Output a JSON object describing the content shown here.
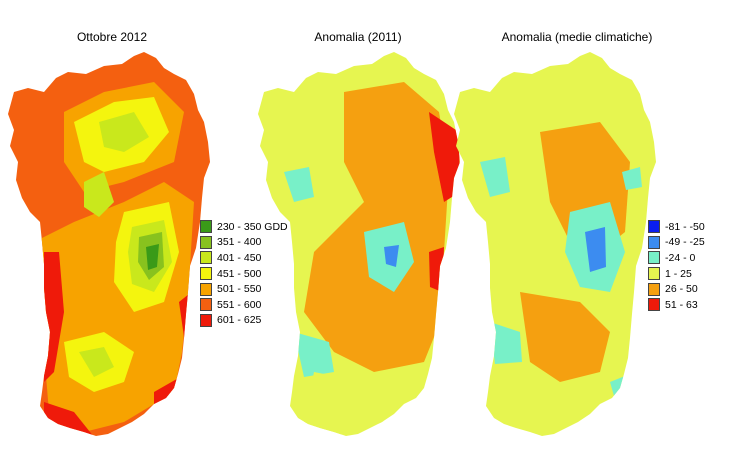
{
  "panels": [
    {
      "title": "Ottobre 2012"
    },
    {
      "title": "Anomalia (2011)"
    },
    {
      "title": "Anomalia (medie climatiche)"
    }
  ],
  "legend_gdd": [
    {
      "label": "230 - 350 GDD",
      "color": "#3a9a18"
    },
    {
      "label": "351 - 400",
      "color": "#88c21e"
    },
    {
      "label": "401 - 450",
      "color": "#c9e81c"
    },
    {
      "label": "451 - 500",
      "color": "#f4f50e"
    },
    {
      "label": "501 - 550",
      "color": "#f7a300"
    },
    {
      "label": "551 - 600",
      "color": "#f46010"
    },
    {
      "label": "601 - 625",
      "color": "#ef1a0a"
    }
  ],
  "legend_anomaly": [
    {
      "label": "-81 - -50",
      "color": "#0a1ef0"
    },
    {
      "label": "-49 - -25",
      "color": "#3c8cf0"
    },
    {
      "label": "-24 - 0",
      "color": "#78f0c8"
    },
    {
      "label": "1 - 25",
      "color": "#e6f550"
    },
    {
      "label": "26 - 50",
      "color": "#f5a010"
    },
    {
      "label": "51 - 63",
      "color": "#ef1a0a"
    }
  ]
}
